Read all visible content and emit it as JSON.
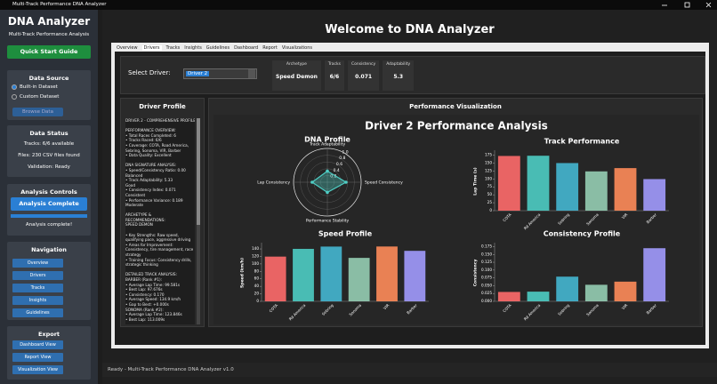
{
  "window": {
    "title": "Multi-Track Performance DNA Analyzer"
  },
  "sidebar": {
    "app_title": "DNA Analyzer",
    "subtitle": "Multi-Track Performance Analysis",
    "quick_start": "Quick Start Guide",
    "data_source": {
      "heading": "Data Source",
      "options": [
        "Built-in Dataset",
        "Custom Dataset"
      ],
      "browse": "Browse Data"
    },
    "data_status": {
      "heading": "Data Status",
      "lines": [
        "Tracks: 6/6 available",
        "Files: 230 CSV files found",
        "Validation: Ready"
      ]
    },
    "analysis": {
      "heading": "Analysis Controls",
      "button": "Analysis Complete",
      "message": "Analysis complete!"
    },
    "navigation": {
      "heading": "Navigation",
      "items": [
        "Overview",
        "Drivers",
        "Tracks",
        "Insights",
        "Guidelines"
      ]
    },
    "export": {
      "heading": "Export",
      "items": [
        "Dashboard View",
        "Report View",
        "Visualization View"
      ]
    }
  },
  "header": {
    "title": "Welcome to DNA Analyzer"
  },
  "tabs": [
    "Overview",
    "Drivers",
    "Tracks",
    "Insights",
    "Guidelines",
    "Dashboard",
    "Report",
    "Visualizations"
  ],
  "selector": {
    "label": "Select Driver:",
    "value": "Driver 2"
  },
  "stats": [
    {
      "label": "Archetype",
      "value": "Speed Demon"
    },
    {
      "label": "Tracks",
      "value": "6/6"
    },
    {
      "label": "Consistency",
      "value": 0.071
    },
    {
      "label": "Adaptability",
      "value": 5.3
    }
  ],
  "profile": {
    "heading": "Driver Profile",
    "lines": [
      "DRIVER 2 - COMPREHENSIVE PROFILE",
      "",
      "PERFORMANCE OVERVIEW:",
      "• Total Races Completed: 6",
      "• Tracks Raced: 6/6",
      "• Coverage: COTA, Road America,",
      "  Sebring, Sonoma, VIR, Barber",
      "• Data Quality: Excellent",
      "",
      "DNA SIGNATURE ANALYSIS:",
      "• Speed/Consistency Ratio: 0.00",
      "  Balanced",
      "• Track Adaptability: 5.33",
      "  Good",
      "• Consistency Index: 0.071",
      "  Consistent",
      "• Performance Variance: 0.189",
      "  Moderate",
      "",
      "ARCHETYPE &",
      "RECOMMENDATIONS:",
      "  SPEED DEMON",
      "",
      "• Key Strengths: Raw speed,",
      "  qualifying pace, aggressive driving",
      "• Areas for Improvement:",
      "  Consistency, tire management, race",
      "  strategy",
      "• Training Focus: Consistency drills,",
      "  strategic thinking",
      "",
      "DETAILED TRACK ANALYSIS:",
      "BARBER (Rank #1):",
      "• Average Lap Time: 99.581s",
      "• Best Lap: 97.676s",
      "• Consistency: 0.170",
      "• Average Speed: 134.9 km/h",
      "• Gap to Best: +0.000s",
      "SONOMA (Rank #2):",
      "• Average Lap Time: 123.846s",
      "• Best Lap: 113.009s"
    ]
  },
  "visualization": {
    "heading": "Performance Visualization",
    "title": "Driver 2 Performance Analysis",
    "charts": [
      {
        "type": "radar",
        "title": "DNA Profile",
        "axes": [
          "Track Adaptability",
          "Speed Consistency",
          "Performance Stability",
          "Lap Consistency"
        ],
        "values": [
          0.33,
          0.55,
          0.3,
          0.45
        ],
        "color": "#4ecdc4",
        "rlim": [
          0,
          1
        ],
        "rticks": [
          0.2,
          0.4,
          0.6,
          0.8,
          {
            "value": 1,
            "label": "1.0"
          }
        ]
      },
      {
        "type": "bar",
        "title": "Track Performance",
        "ylabel": "Lap Time (s)",
        "categories": [
          "COTA",
          "Rd America",
          "Sebring",
          "Sonoma",
          "VIR",
          "Barber"
        ],
        "values": [
          172.5,
          173.2,
          150.1,
          123.846,
          134.2,
          99.581
        ],
        "colors": [
          "#ff6b6b",
          "#4ecdc4",
          "#45b7d1",
          "#96ceb4",
          "#ff8c5a",
          "#a29bfe"
        ],
        "ylim": [
          0,
          185
        ],
        "yticks": [
          0,
          25,
          50,
          75,
          100,
          125,
          150,
          175
        ]
      },
      {
        "type": "bar",
        "title": "Speed Profile",
        "ylabel": "Speed (km/h)",
        "categories": [
          "COTA",
          "Rd America",
          "Sebring",
          "Sonoma",
          "VIR",
          "Barber"
        ],
        "values": [
          119.5,
          140.2,
          146.3,
          116.1,
          146.5,
          134.9
        ],
        "colors": [
          "#ff6b6b",
          "#4ecdc4",
          "#45b7d1",
          "#96ceb4",
          "#ff8c5a",
          "#a29bfe"
        ],
        "ylim": [
          0,
          152
        ],
        "yticks": [
          0,
          20,
          40,
          60,
          80,
          100,
          120,
          140
        ]
      },
      {
        "type": "bar",
        "title": "Consistency Profile",
        "ylabel": "Consistency",
        "categories": [
          "COTA",
          "Rd America",
          "Sebring",
          "Sonoma",
          "VIR",
          "Barber"
        ],
        "values": [
          0.03,
          0.031,
          0.079,
          0.053,
          0.063,
          0.17
        ],
        "colors": [
          "#ff6b6b",
          "#4ecdc4",
          "#45b7d1",
          "#96ceb4",
          "#ff8c5a",
          "#a29bfe"
        ],
        "ylim": [
          0,
          0.182
        ],
        "yticks": [
          {
            "value": 0,
            "label": "0.000"
          },
          {
            "value": 0.025,
            "label": "0.025"
          },
          {
            "value": 0.05,
            "label": "0.050"
          },
          {
            "value": 0.075,
            "label": "0.075"
          },
          {
            "value": 0.1,
            "label": "0.100"
          },
          {
            "value": 0.125,
            "label": "0.125"
          },
          {
            "value": 0.15,
            "label": "0.150"
          },
          {
            "value": 0.175,
            "label": "0.175"
          }
        ]
      }
    ]
  },
  "status_bar": "Ready - Multi-Track Performance DNA Analyzer v1.0"
}
